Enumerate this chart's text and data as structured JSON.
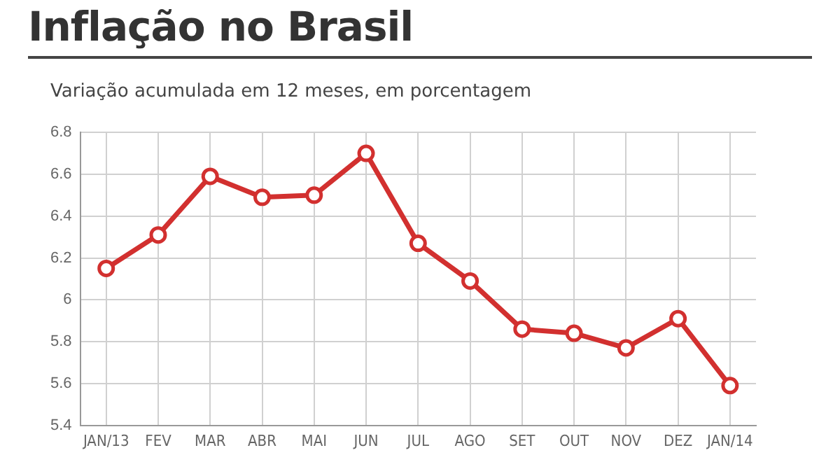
{
  "chart_data": {
    "type": "line",
    "title": "Inflação no Brasil",
    "subtitle": "Variação acumulada em 12 meses, em porcentagem",
    "categories": [
      "JAN/13",
      "FEV",
      "MAR",
      "ABR",
      "MAI",
      "JUN",
      "JUL",
      "AGO",
      "SET",
      "OUT",
      "NOV",
      "DEZ",
      "JAN/14"
    ],
    "series": [
      {
        "color": "#d2302f",
        "values": [
          6.15,
          6.31,
          6.59,
          6.49,
          6.5,
          6.7,
          6.27,
          6.09,
          5.86,
          5.84,
          5.77,
          5.91,
          5.59
        ]
      }
    ],
    "ylim": [
      5.4,
      6.8
    ],
    "yticks": [
      5.4,
      5.6,
      5.8,
      6,
      6.2,
      6.4,
      6.6,
      6.8
    ],
    "grid": true,
    "marker": "circle",
    "line_style": "solid"
  }
}
